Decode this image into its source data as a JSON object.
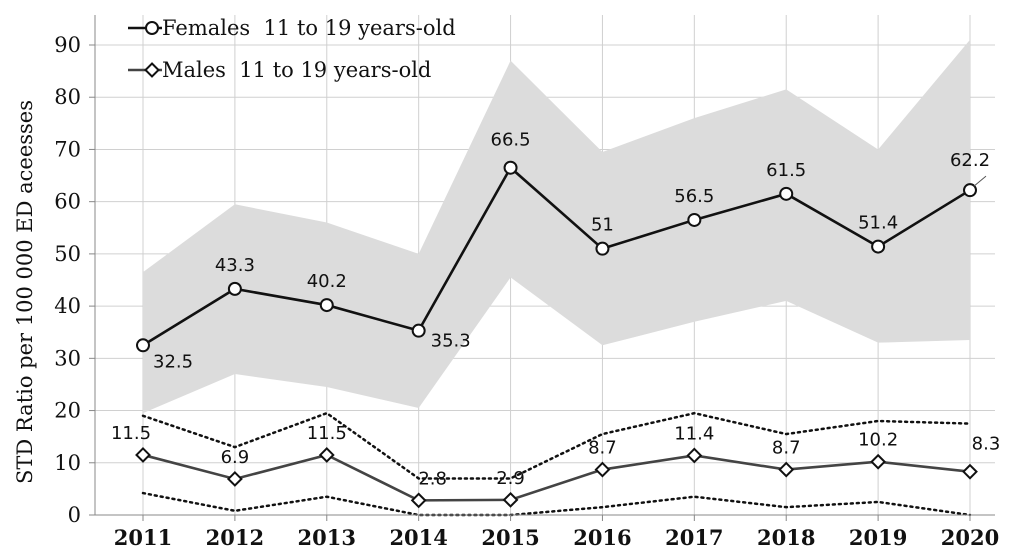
{
  "chart_data": {
    "type": "line",
    "title": "",
    "xlabel": "",
    "ylabel": "STD Ratio per 100 000 ED aceesses",
    "ylim": [
      0,
      90
    ],
    "yticks": [
      0,
      10,
      20,
      30,
      40,
      50,
      60,
      70,
      80,
      90
    ],
    "grid": true,
    "legend_position": "top-left",
    "categories": [
      "2011",
      "2012",
      "2013",
      "2014",
      "2015",
      "2016",
      "2017",
      "2018",
      "2019",
      "2020"
    ],
    "series": [
      {
        "name": "Females  11 to 19 years-old",
        "marker": "circle",
        "color": "#111111",
        "values": [
          32.5,
          43.3,
          40.2,
          35.3,
          66.5,
          51,
          56.5,
          61.5,
          51.4,
          62.2
        ],
        "labels": [
          "32.5",
          "43.3",
          "40.2",
          "35.3",
          "66.5",
          "51",
          "56.5",
          "61.5",
          "51.4",
          "62.2"
        ],
        "ci_upper": [
          46.5,
          59.5,
          56.0,
          50.0,
          87.0,
          69.5,
          76.0,
          81.5,
          70.0,
          91.0
        ],
        "ci_lower": [
          19.5,
          27.0,
          24.5,
          20.5,
          45.5,
          32.5,
          37.0,
          41.0,
          33.0,
          33.5
        ],
        "ci_color": "#dcdcdc"
      },
      {
        "name": "Males  11 to 19 years-old",
        "marker": "diamond",
        "color": "#444444",
        "values": [
          11.5,
          6.9,
          11.5,
          2.8,
          2.9,
          8.7,
          11.4,
          8.7,
          10.2,
          8.3
        ],
        "labels": [
          "11.5",
          "6.9",
          "11.5",
          "2.8",
          "2.9",
          "8.7",
          "11.4",
          "8.7",
          "10.2",
          "8.3"
        ],
        "ci_upper": [
          19.0,
          13.0,
          19.5,
          7.0,
          7.0,
          15.5,
          19.5,
          15.5,
          18.0,
          17.5
        ],
        "ci_lower": [
          4.2,
          0.8,
          3.5,
          0.0,
          0.0,
          1.5,
          3.5,
          1.5,
          2.5,
          0.0
        ]
      }
    ]
  }
}
